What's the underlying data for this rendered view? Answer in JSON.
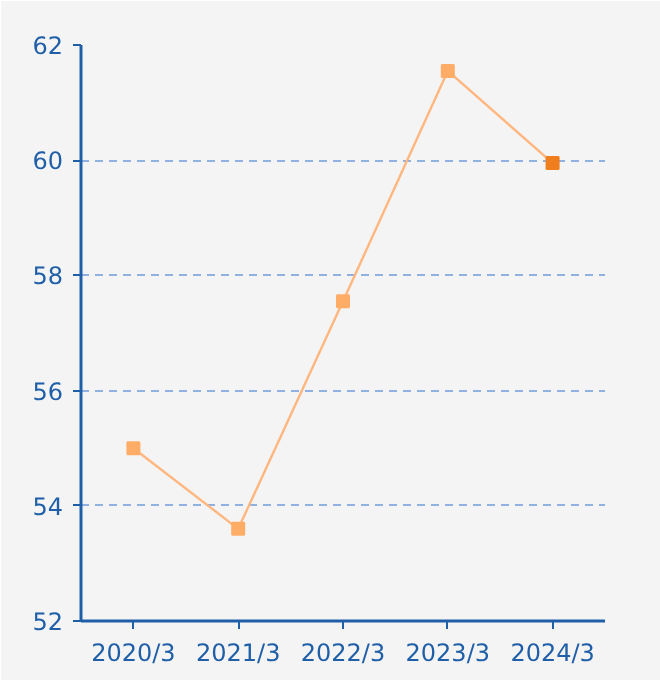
{
  "chart_data": {
    "type": "line",
    "categories": [
      "2020/3",
      "2021/3",
      "2022/3",
      "2023/3",
      "2024/3"
    ],
    "series": [
      {
        "color": "#ffb67f",
        "colors": [
          "#ffad66",
          "#ffad66",
          "#ffad66",
          "#ffad66",
          "#f07e1e"
        ],
        "values": [
          55.0,
          53.6,
          57.55,
          61.55,
          59.95
        ]
      }
    ],
    "ylim": [
      52,
      62
    ],
    "yticks": [
      52,
      54,
      56,
      58,
      60,
      62
    ],
    "grid": "y",
    "marker": "square",
    "line_style": "solid"
  }
}
